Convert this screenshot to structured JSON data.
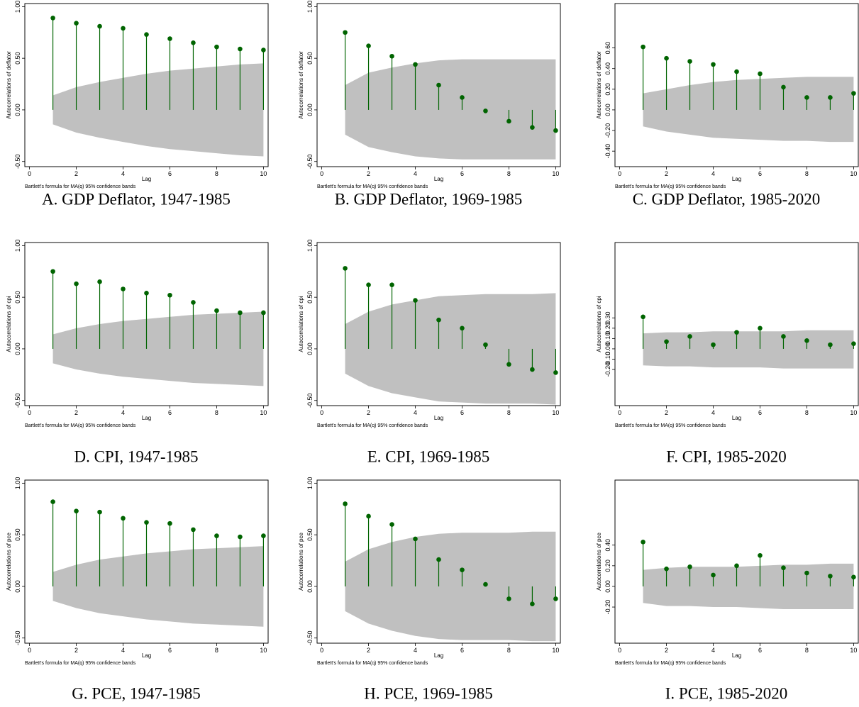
{
  "chart_data": [
    {
      "type": "stem",
      "title": "A. GDP Deflator, 1947-1985",
      "ylabel": "Autocorrelations of deflator",
      "xlabel": "Lag",
      "note": "Bartlett's formula for MA(q) 95% confidence bands",
      "color": "#006400",
      "band_color": "#c0c0c0",
      "x": [
        1,
        2,
        3,
        4,
        5,
        6,
        7,
        8,
        9,
        10
      ],
      "values": [
        0.89,
        0.84,
        0.81,
        0.79,
        0.73,
        0.69,
        0.65,
        0.61,
        0.59,
        0.58
      ],
      "band": {
        "upper": [
          0.14,
          0.22,
          0.27,
          0.31,
          0.35,
          0.38,
          0.4,
          0.42,
          0.44,
          0.45
        ],
        "lower": [
          -0.14,
          -0.22,
          -0.27,
          -0.31,
          -0.35,
          -0.38,
          -0.4,
          -0.42,
          -0.44,
          -0.45
        ]
      },
      "xlim": [
        -0.2,
        10.2
      ],
      "xticks": [
        0,
        2,
        4,
        6,
        8,
        10
      ],
      "ylim": [
        -0.55,
        1.03
      ],
      "yticks": [
        {
          "value": -0.5,
          "label": "-0.50"
        },
        {
          "value": 0,
          "label": "0.00"
        },
        {
          "value": 0.5,
          "label": "0.50"
        },
        {
          "value": 1,
          "label": "1.00"
        }
      ]
    },
    {
      "type": "stem",
      "title": "B. GDP Deflator, 1969-1985",
      "ylabel": "Autocorrelations of deflator",
      "xlabel": "Lag",
      "note": "Bartlett's formula for MA(q) 95% confidence bands",
      "color": "#006400",
      "band_color": "#c0c0c0",
      "x": [
        1,
        2,
        3,
        4,
        5,
        6,
        7,
        8,
        9,
        10
      ],
      "values": [
        0.75,
        0.62,
        0.52,
        0.44,
        0.24,
        0.12,
        -0.01,
        -0.11,
        -0.17,
        -0.2
      ],
      "band": {
        "upper": [
          0.24,
          0.36,
          0.41,
          0.45,
          0.48,
          0.49,
          0.49,
          0.49,
          0.49,
          0.49
        ],
        "lower": [
          -0.24,
          -0.36,
          -0.41,
          -0.45,
          -0.47,
          -0.48,
          -0.48,
          -0.48,
          -0.48,
          -0.48
        ]
      },
      "xlim": [
        -0.2,
        10.2
      ],
      "xticks": [
        0,
        2,
        4,
        6,
        8,
        10
      ],
      "ylim": [
        -0.55,
        1.03
      ],
      "yticks": [
        {
          "value": -0.5,
          "label": "-0.50"
        },
        {
          "value": 0,
          "label": "0.00"
        },
        {
          "value": 0.5,
          "label": "0.50"
        },
        {
          "value": 1,
          "label": "1.00"
        }
      ]
    },
    {
      "type": "stem",
      "title": "C. GDP Deflator, 1985-2020",
      "ylabel": "Autocorrelations of deflator",
      "xlabel": "Lag",
      "note": "Bartlett's formula for MA(q) 95% confidence bands",
      "color": "#006400",
      "band_color": "#c0c0c0",
      "x": [
        1,
        2,
        3,
        4,
        5,
        6,
        7,
        8,
        9,
        10
      ],
      "values": [
        0.61,
        0.5,
        0.47,
        0.44,
        0.37,
        0.35,
        0.22,
        0.12,
        0.12,
        0.16
      ],
      "band": {
        "upper": [
          0.16,
          0.2,
          0.24,
          0.27,
          0.29,
          0.3,
          0.31,
          0.32,
          0.32,
          0.32
        ],
        "lower": [
          -0.16,
          -0.21,
          -0.24,
          -0.27,
          -0.28,
          -0.29,
          -0.3,
          -0.3,
          -0.31,
          -0.31
        ]
      },
      "xlim": [
        -0.2,
        10.2
      ],
      "xticks": [
        0,
        2,
        4,
        6,
        8,
        10
      ],
      "ylim": [
        -0.55,
        1.03
      ],
      "yticks": [
        {
          "value": -0.4,
          "label": "-0.40"
        },
        {
          "value": -0.2,
          "label": "-0.20"
        },
        {
          "value": 0,
          "label": "0.00"
        },
        {
          "value": 0.2,
          "label": "0.20"
        },
        {
          "value": 0.4,
          "label": "0.40"
        },
        {
          "value": 0.6,
          "label": "0.60"
        }
      ]
    },
    {
      "type": "stem",
      "title": "D. CPI, 1947-1985",
      "ylabel": "Autocorrelations of cpi",
      "xlabel": "Lag",
      "note": "Bartlett's formula for MA(q) 95% confidence bands",
      "color": "#006400",
      "band_color": "#c0c0c0",
      "x": [
        1,
        2,
        3,
        4,
        5,
        6,
        7,
        8,
        9,
        10
      ],
      "values": [
        0.75,
        0.63,
        0.65,
        0.58,
        0.54,
        0.52,
        0.45,
        0.37,
        0.35,
        0.35
      ],
      "band": {
        "upper": [
          0.14,
          0.2,
          0.24,
          0.27,
          0.29,
          0.31,
          0.33,
          0.34,
          0.35,
          0.36
        ],
        "lower": [
          -0.14,
          -0.2,
          -0.24,
          -0.27,
          -0.29,
          -0.31,
          -0.33,
          -0.34,
          -0.35,
          -0.36
        ]
      },
      "xlim": [
        -0.2,
        10.2
      ],
      "xticks": [
        0,
        2,
        4,
        6,
        8,
        10
      ],
      "ylim": [
        -0.55,
        1.03
      ],
      "yticks": [
        {
          "value": -0.5,
          "label": "-0.50"
        },
        {
          "value": 0,
          "label": "0.00"
        },
        {
          "value": 0.5,
          "label": "0.50"
        },
        {
          "value": 1,
          "label": "1.00"
        }
      ]
    },
    {
      "type": "stem",
      "title": "E. CPI, 1969-1985",
      "ylabel": "Autocorrelations of cpi",
      "xlabel": "Lag",
      "note": "Bartlett's formula for MA(q) 95% confidence bands",
      "color": "#006400",
      "band_color": "#c0c0c0",
      "x": [
        1,
        2,
        3,
        4,
        5,
        6,
        7,
        8,
        9,
        10
      ],
      "values": [
        0.78,
        0.62,
        0.62,
        0.47,
        0.28,
        0.2,
        0.04,
        -0.15,
        -0.2,
        -0.23
      ],
      "band": {
        "upper": [
          0.24,
          0.36,
          0.43,
          0.47,
          0.51,
          0.52,
          0.53,
          0.53,
          0.53,
          0.54
        ],
        "lower": [
          -0.24,
          -0.36,
          -0.43,
          -0.47,
          -0.51,
          -0.52,
          -0.53,
          -0.53,
          -0.53,
          -0.54
        ]
      },
      "xlim": [
        -0.2,
        10.2
      ],
      "xticks": [
        0,
        2,
        4,
        6,
        8,
        10
      ],
      "ylim": [
        -0.55,
        1.03
      ],
      "yticks": [
        {
          "value": -0.5,
          "label": "-0.50"
        },
        {
          "value": 0,
          "label": "0.00"
        },
        {
          "value": 0.5,
          "label": "0.50"
        },
        {
          "value": 1,
          "label": "1.00"
        }
      ]
    },
    {
      "type": "stem",
      "title": "F. CPI, 1985-2020",
      "ylabel": "Autocorrelations of cpi",
      "xlabel": "Lag",
      "note": "Bartlett's formula for MA(q) 95% confidence bands",
      "color": "#006400",
      "band_color": "#c0c0c0",
      "x": [
        1,
        2,
        3,
        4,
        5,
        6,
        7,
        8,
        9,
        10
      ],
      "values": [
        0.31,
        0.07,
        0.12,
        0.04,
        0.16,
        0.2,
        0.12,
        0.08,
        0.04,
        0.05
      ],
      "band": {
        "upper": [
          0.15,
          0.16,
          0.16,
          0.17,
          0.17,
          0.17,
          0.17,
          0.18,
          0.18,
          0.18
        ],
        "lower": [
          -0.16,
          -0.17,
          -0.17,
          -0.18,
          -0.18,
          -0.18,
          -0.19,
          -0.19,
          -0.19,
          -0.19
        ]
      },
      "xlim": [
        -0.2,
        10.2
      ],
      "xticks": [
        0,
        2,
        4,
        6,
        8,
        10
      ],
      "ylim": [
        -0.55,
        1.03
      ],
      "yticks": [
        {
          "value": -0.2,
          "label": "-0.20"
        },
        {
          "value": -0.1,
          "label": "-0.10"
        },
        {
          "value": 0,
          "label": "0.00"
        },
        {
          "value": 0.1,
          "label": "0.10"
        },
        {
          "value": 0.2,
          "label": "0.20"
        },
        {
          "value": 0.3,
          "label": "0.30"
        }
      ]
    },
    {
      "type": "stem",
      "title": "G. PCE, 1947-1985",
      "ylabel": "Autocorrelations of pce",
      "xlabel": "Lag",
      "note": "Bartlett's formula for MA(q) 95% confidence bands",
      "color": "#006400",
      "band_color": "#c0c0c0",
      "x": [
        1,
        2,
        3,
        4,
        5,
        6,
        7,
        8,
        9,
        10
      ],
      "values": [
        0.82,
        0.73,
        0.72,
        0.66,
        0.62,
        0.61,
        0.55,
        0.49,
        0.48,
        0.49
      ],
      "band": {
        "upper": [
          0.14,
          0.21,
          0.26,
          0.29,
          0.32,
          0.34,
          0.36,
          0.37,
          0.38,
          0.39
        ],
        "lower": [
          -0.14,
          -0.21,
          -0.26,
          -0.29,
          -0.32,
          -0.34,
          -0.36,
          -0.37,
          -0.38,
          -0.39
        ]
      },
      "xlim": [
        -0.2,
        10.2
      ],
      "xticks": [
        0,
        2,
        4,
        6,
        8,
        10
      ],
      "ylim": [
        -0.55,
        1.03
      ],
      "yticks": [
        {
          "value": -0.5,
          "label": "-0.50"
        },
        {
          "value": 0,
          "label": "0.00"
        },
        {
          "value": 0.5,
          "label": "0.50"
        },
        {
          "value": 1,
          "label": "1.00"
        }
      ]
    },
    {
      "type": "stem",
      "title": "H. PCE, 1969-1985",
      "ylabel": "Autocorrelations of pce",
      "xlabel": "Lag",
      "note": "Bartlett's formula for MA(q) 95% confidence bands",
      "color": "#006400",
      "band_color": "#c0c0c0",
      "x": [
        1,
        2,
        3,
        4,
        5,
        6,
        7,
        8,
        9,
        10
      ],
      "values": [
        0.8,
        0.68,
        0.6,
        0.46,
        0.26,
        0.16,
        0.02,
        -0.12,
        -0.17,
        -0.12
      ],
      "band": {
        "upper": [
          0.24,
          0.36,
          0.43,
          0.48,
          0.51,
          0.52,
          0.52,
          0.52,
          0.53,
          0.53
        ],
        "lower": [
          -0.24,
          -0.36,
          -0.43,
          -0.48,
          -0.51,
          -0.52,
          -0.52,
          -0.52,
          -0.53,
          -0.53
        ]
      },
      "xlim": [
        -0.2,
        10.2
      ],
      "xticks": [
        0,
        2,
        4,
        6,
        8,
        10
      ],
      "ylim": [
        -0.55,
        1.03
      ],
      "yticks": [
        {
          "value": -0.5,
          "label": "-0.50"
        },
        {
          "value": 0,
          "label": "0.00"
        },
        {
          "value": 0.5,
          "label": "0.50"
        },
        {
          "value": 1,
          "label": "1.00"
        }
      ]
    },
    {
      "type": "stem",
      "title": "I. PCE, 1985-2020",
      "ylabel": "Autocorrelations of pce",
      "xlabel": "Lag",
      "note": "Bartlett's formula for MA(q) 95% confidence bands",
      "color": "#006400",
      "band_color": "#c0c0c0",
      "x": [
        1,
        2,
        3,
        4,
        5,
        6,
        7,
        8,
        9,
        10
      ],
      "values": [
        0.43,
        0.17,
        0.19,
        0.11,
        0.2,
        0.3,
        0.18,
        0.13,
        0.1,
        0.09
      ],
      "band": {
        "upper": [
          0.16,
          0.18,
          0.19,
          0.19,
          0.19,
          0.2,
          0.21,
          0.21,
          0.22,
          0.22
        ],
        "lower": [
          -0.16,
          -0.19,
          -0.19,
          -0.2,
          -0.2,
          -0.21,
          -0.22,
          -0.22,
          -0.22,
          -0.22
        ]
      },
      "xlim": [
        -0.2,
        10.2
      ],
      "xticks": [
        0,
        2,
        4,
        6,
        8,
        10
      ],
      "ylim": [
        -0.55,
        1.03
      ],
      "yticks": [
        {
          "value": -0.2,
          "label": "-0.20"
        },
        {
          "value": 0,
          "label": "0.00"
        },
        {
          "value": 0.2,
          "label": "0.20"
        },
        {
          "value": 0.4,
          "label": "0.40"
        }
      ]
    }
  ]
}
